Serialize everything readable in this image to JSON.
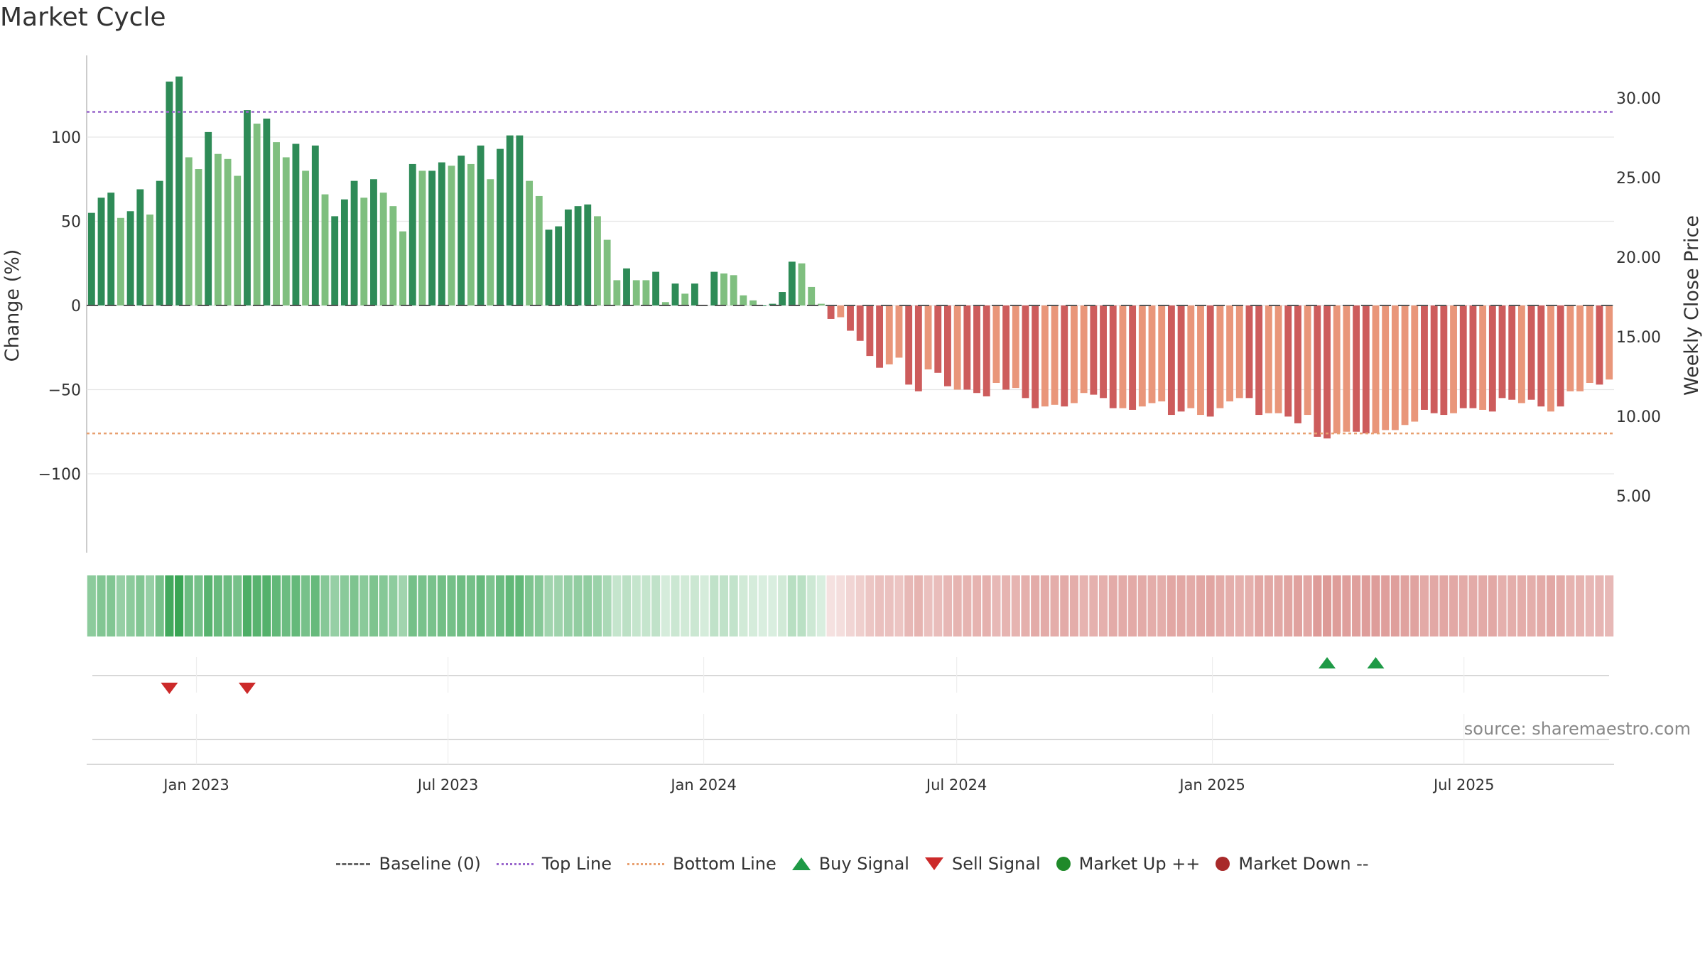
{
  "title": "Market Cycle",
  "source": "source: sharemaestro.com",
  "colors": {
    "up_dark": "#2e8b57",
    "up_light": "#7fbf7f",
    "down_dark": "#cd5c5c",
    "down_light": "#e9967a",
    "top_line": "#9966cc",
    "bottom_line": "#e8a070",
    "buy": "#1e9a46",
    "sell": "#cc2a2a"
  },
  "legend": [
    {
      "key": "baseline",
      "label": "Baseline (0)"
    },
    {
      "key": "top",
      "label": "Top Line"
    },
    {
      "key": "bottom",
      "label": "Bottom Line"
    },
    {
      "key": "buy",
      "label": "Buy Signal"
    },
    {
      "key": "sell",
      "label": "Sell Signal"
    },
    {
      "key": "up",
      "label": "Market Up ++"
    },
    {
      "key": "down",
      "label": "Market Down --"
    }
  ],
  "chart_data": {
    "type": "bar",
    "ylabel": "Change (%)",
    "ylabel_right": "Weekly Close Price",
    "y_ticks": [
      100,
      50,
      0,
      -50,
      -100
    ],
    "y_tick_labels": [
      "100",
      "50",
      "0",
      "−50",
      "−100"
    ],
    "y_right_ticks": [
      30.0,
      25.0,
      20.0,
      15.0,
      10.0,
      5.0
    ],
    "y_right_tick_labels": [
      "30.00",
      "25.00",
      "20.00",
      "15.00",
      "10.00",
      "5.00"
    ],
    "top_line": 115,
    "bottom_line": -76,
    "baseline": 0,
    "x_start": "2022-10-14",
    "x_ticks": [
      {
        "date": "2023-01-01",
        "label": "Jan 2023"
      },
      {
        "date": "2023-07-01",
        "label": "Jul 2023"
      },
      {
        "date": "2024-01-01",
        "label": "Jan 2024"
      },
      {
        "date": "2024-07-01",
        "label": "Jul 2024"
      },
      {
        "date": "2025-01-01",
        "label": "Jan 2025"
      },
      {
        "date": "2025-07-01",
        "label": "Jul 2025"
      }
    ],
    "values": [
      55,
      64,
      67,
      52,
      56,
      69,
      54,
      74,
      133,
      136,
      88,
      81,
      103,
      90,
      87,
      77,
      116,
      108,
      111,
      97,
      88,
      96,
      80,
      95,
      66,
      53,
      63,
      74,
      64,
      75,
      67,
      59,
      44,
      84,
      80,
      80,
      85,
      83,
      89,
      84,
      95,
      75,
      93,
      101,
      101,
      74,
      65,
      45,
      47,
      57,
      59,
      60,
      53,
      39,
      15,
      22,
      15,
      15,
      20,
      2,
      13,
      7,
      13,
      0,
      20,
      19,
      18,
      6,
      3,
      0,
      1,
      8,
      26,
      25,
      11,
      1,
      -8,
      -7,
      -15,
      -21,
      -30,
      -37,
      -35,
      -31,
      -47,
      -51,
      -38,
      -40,
      -48,
      -50,
      -50,
      -52,
      -54,
      -46,
      -50,
      -49,
      -55,
      -61,
      -60,
      -59,
      -60,
      -58,
      -52,
      -53,
      -55,
      -61,
      -61,
      -62,
      -60,
      -58,
      -57,
      -65,
      -63,
      -61,
      -65,
      -66,
      -61,
      -57,
      -55,
      -55,
      -65,
      -64,
      -64,
      -66,
      -70,
      -65,
      -78,
      -79,
      -76,
      -75,
      -75,
      -76,
      -76,
      -74,
      -74,
      -71,
      -69,
      -62,
      -64,
      -65,
      -64,
      -61,
      -61,
      -62,
      -63,
      -55,
      -56,
      -58,
      -56,
      -60,
      -63,
      -60,
      -51,
      -51,
      -46,
      -47,
      -44
    ],
    "shade": [
      0,
      0,
      0,
      1,
      0,
      0,
      1,
      0,
      0,
      0,
      1,
      1,
      0,
      1,
      1,
      1,
      0,
      1,
      0,
      1,
      1,
      0,
      1,
      0,
      1,
      0,
      0,
      0,
      1,
      0,
      1,
      1,
      1,
      0,
      1,
      0,
      0,
      1,
      0,
      1,
      0,
      1,
      0,
      0,
      0,
      1,
      1,
      0,
      0,
      0,
      0,
      0,
      1,
      1,
      1,
      0,
      1,
      1,
      0,
      1,
      0,
      1,
      0,
      1,
      0,
      1,
      1,
      1,
      1,
      0,
      0,
      0,
      0,
      1,
      1,
      1,
      0,
      1,
      0,
      0,
      0,
      0,
      1,
      1,
      0,
      0,
      1,
      0,
      0,
      1,
      0,
      0,
      0,
      1,
      0,
      1,
      0,
      0,
      1,
      1,
      0,
      1,
      1,
      0,
      0,
      0,
      1,
      0,
      1,
      1,
      1,
      0,
      0,
      1,
      1,
      0,
      1,
      1,
      1,
      0,
      0,
      1,
      1,
      0,
      0,
      1,
      0,
      0,
      1,
      1,
      0,
      0,
      1,
      1,
      1,
      1,
      1,
      0,
      0,
      0,
      1,
      0,
      0,
      1,
      0,
      0,
      0,
      1,
      0,
      0,
      1,
      0,
      1,
      1,
      1,
      0,
      1
    ],
    "strip_intensity": [
      0.55,
      0.6,
      0.6,
      0.5,
      0.55,
      0.6,
      0.5,
      0.65,
      0.9,
      0.95,
      0.7,
      0.65,
      0.8,
      0.72,
      0.7,
      0.65,
      0.85,
      0.8,
      0.82,
      0.75,
      0.7,
      0.74,
      0.65,
      0.73,
      0.58,
      0.5,
      0.56,
      0.62,
      0.56,
      0.62,
      0.58,
      0.54,
      0.45,
      0.66,
      0.64,
      0.64,
      0.67,
      0.66,
      0.69,
      0.66,
      0.72,
      0.62,
      0.7,
      0.75,
      0.75,
      0.62,
      0.58,
      0.45,
      0.46,
      0.5,
      0.52,
      0.52,
      0.48,
      0.4,
      0.28,
      0.32,
      0.28,
      0.28,
      0.3,
      0.2,
      0.25,
      0.22,
      0.25,
      0.2,
      0.3,
      0.3,
      0.29,
      0.22,
      0.2,
      0.18,
      0.18,
      0.22,
      0.34,
      0.33,
      0.24,
      0.18,
      0.2,
      0.22,
      0.28,
      0.32,
      0.38,
      0.42,
      0.41,
      0.39,
      0.47,
      0.5,
      0.42,
      0.44,
      0.48,
      0.5,
      0.5,
      0.51,
      0.52,
      0.47,
      0.5,
      0.5,
      0.53,
      0.56,
      0.56,
      0.55,
      0.56,
      0.55,
      0.51,
      0.52,
      0.53,
      0.56,
      0.56,
      0.57,
      0.56,
      0.55,
      0.54,
      0.59,
      0.58,
      0.56,
      0.59,
      0.6,
      0.56,
      0.54,
      0.53,
      0.53,
      0.59,
      0.58,
      0.58,
      0.6,
      0.62,
      0.59,
      0.66,
      0.67,
      0.65,
      0.64,
      0.64,
      0.65,
      0.65,
      0.64,
      0.64,
      0.62,
      0.61,
      0.57,
      0.58,
      0.59,
      0.58,
      0.56,
      0.56,
      0.57,
      0.58,
      0.53,
      0.54,
      0.55,
      0.54,
      0.56,
      0.58,
      0.56,
      0.51,
      0.51,
      0.48,
      0.49,
      0.47
    ],
    "sell_signals": [
      8,
      16
    ],
    "buy_signals": [
      127,
      132
    ],
    "grid": true
  }
}
